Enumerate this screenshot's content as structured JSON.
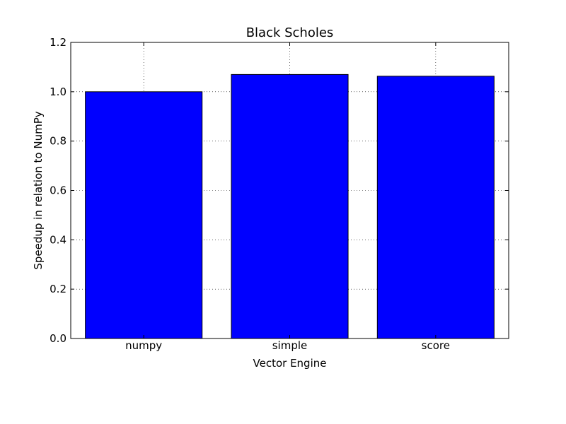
{
  "chart_data": {
    "type": "bar",
    "title": "Black Scholes",
    "xlabel": "Vector Engine",
    "ylabel": "Speedup in relation to NumPy",
    "categories": [
      "numpy",
      "simple",
      "score"
    ],
    "values": [
      1.0,
      1.07,
      1.063
    ],
    "ylim": [
      0,
      1.2
    ],
    "yticks": [
      "0.0",
      "0.2",
      "0.4",
      "0.6",
      "0.8",
      "1.0",
      "1.2"
    ],
    "grid": true,
    "bar_color": "#0000ff",
    "legend": "none"
  }
}
